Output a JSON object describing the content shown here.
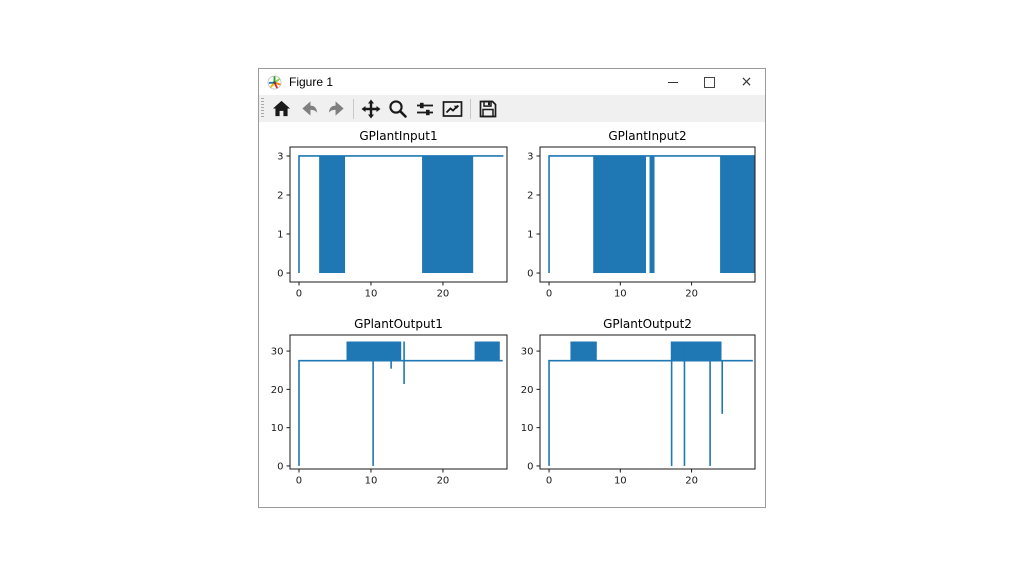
{
  "window": {
    "title": "Figure 1",
    "app_icon": "matplotlib-logo-icon",
    "controls": {
      "minimize": "minimize",
      "maximize": "maximize",
      "close_glyph": "×"
    }
  },
  "toolbar": {
    "buttons": [
      {
        "name": "home",
        "icon": "home-icon",
        "enabled": true
      },
      {
        "name": "back",
        "icon": "back-arrow-icon",
        "enabled": false
      },
      {
        "name": "forward",
        "icon": "forward-arrow-icon",
        "enabled": false
      },
      {
        "name": "pan",
        "icon": "pan-arrows-icon",
        "enabled": true
      },
      {
        "name": "zoom",
        "icon": "zoom-magnifier-icon",
        "enabled": true
      },
      {
        "name": "configure-subplots",
        "icon": "sliders-icon",
        "enabled": true
      },
      {
        "name": "edit-parameters",
        "icon": "line-chart-icon",
        "enabled": true
      },
      {
        "name": "save",
        "icon": "save-floppy-icon",
        "enabled": true
      }
    ]
  },
  "colors": {
    "line": "#1f77b4",
    "axes_edge": "#1a1a1a",
    "tick_text": "#1a1a1a",
    "toolbar_bg": "#f0f0f0",
    "titlebar_bg": "#ffffff",
    "window_border": "#9a9a9a",
    "icon": "#1a1a1a",
    "icon_disabled": "#7f7f7f"
  },
  "chart_data": [
    {
      "type": "line",
      "title": "GPlantInput1",
      "xlim": [
        -1.25,
        28.9
      ],
      "ylim": [
        -0.23,
        3.23
      ],
      "xticks": [
        0,
        10,
        20
      ],
      "yticks": [
        0,
        1,
        2,
        3
      ],
      "grid": false,
      "legend": null,
      "baseline": 3,
      "start": [
        0,
        0
      ],
      "x_end": 28.4,
      "oscillation_bands": [
        [
          2.8,
          6.4,
          0,
          3
        ],
        [
          17.1,
          24.2,
          0,
          3
        ]
      ],
      "spikes": []
    },
    {
      "type": "line",
      "title": "GPlantInput2",
      "xlim": [
        -1.27,
        28.9
      ],
      "ylim": [
        -0.23,
        3.23
      ],
      "xticks": [
        0,
        10,
        20
      ],
      "yticks": [
        0,
        1,
        2,
        3
      ],
      "grid": false,
      "legend": null,
      "baseline": 3,
      "start": [
        0,
        0
      ],
      "x_end": 28.85,
      "oscillation_bands": [
        [
          6.2,
          13.6,
          0,
          3
        ],
        [
          14.1,
          14.8,
          0,
          3
        ],
        [
          24.0,
          28.85,
          0,
          3
        ]
      ],
      "spikes": []
    },
    {
      "type": "line",
      "title": "GPlantOutput1",
      "xlim": [
        -1.25,
        28.9
      ],
      "ylim": [
        -0.8,
        34.2
      ],
      "xticks": [
        0,
        10,
        20
      ],
      "yticks": [
        0,
        10,
        20,
        30
      ],
      "grid": false,
      "legend": null,
      "baseline": 27.5,
      "start": [
        0,
        0
      ],
      "x_end": 28.3,
      "oscillation_bands": [
        [
          6.6,
          14.2,
          27.5,
          32.5
        ],
        [
          24.4,
          27.9,
          27.5,
          32.5
        ]
      ],
      "spikes": [
        [
          10.3,
          0,
          27.5
        ],
        [
          12.8,
          25.4,
          27.5
        ],
        [
          14.6,
          21.4,
          32.5
        ]
      ]
    },
    {
      "type": "line",
      "title": "GPlantOutput2",
      "xlim": [
        -1.27,
        28.9
      ],
      "ylim": [
        -0.8,
        34.2
      ],
      "xticks": [
        0,
        10,
        20
      ],
      "yticks": [
        0,
        10,
        20,
        30
      ],
      "grid": false,
      "legend": null,
      "baseline": 27.5,
      "start": [
        0,
        0
      ],
      "x_end": 28.6,
      "oscillation_bands": [
        [
          3.0,
          6.7,
          27.5,
          32.5
        ],
        [
          17.1,
          24.2,
          27.5,
          32.5
        ]
      ],
      "spikes": [
        [
          17.2,
          0,
          32.5
        ],
        [
          19.0,
          0,
          32.5
        ],
        [
          22.6,
          0,
          32.5
        ],
        [
          24.3,
          13.6,
          27.5
        ]
      ]
    }
  ]
}
